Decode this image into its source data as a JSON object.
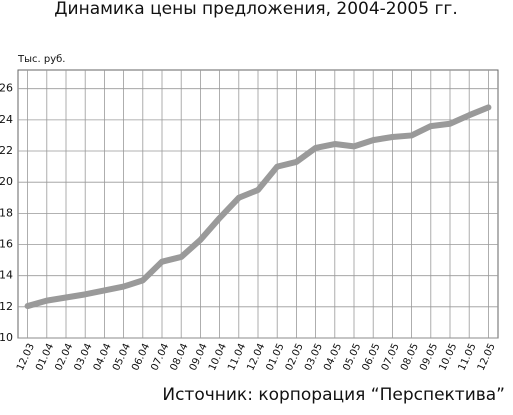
{
  "chart_data": {
    "type": "line",
    "title": "Динамика цены предложения, 2004-2005 гг.",
    "y_label": "Тыс. руб.",
    "source": "Источник: корпорация “Перспектива”",
    "categories": [
      "12.03",
      "01.04",
      "02.04",
      "03.04",
      "04.04",
      "05.04",
      "06.04",
      "07.04",
      "08.04",
      "09.04",
      "10.04",
      "11.04",
      "12.04",
      "01.05",
      "02.05",
      "03.05",
      "04.05",
      "05.05",
      "06.05",
      "07.05",
      "08.05",
      "09.05",
      "10.05",
      "11.05",
      "12.05"
    ],
    "series": [
      {
        "color": "#9a9a9a",
        "values": [
          12.05,
          12.4,
          12.6,
          12.8,
          13.05,
          13.3,
          13.7,
          14.9,
          15.2,
          16.3,
          17.7,
          19.0,
          19.5,
          21.0,
          21.3,
          22.2,
          22.45,
          22.3,
          22.7,
          22.9,
          23.0,
          23.6,
          23.75,
          24.3,
          24.8
        ]
      }
    ],
    "ylim": [
      10,
      27.2
    ],
    "yticks": [
      10,
      12,
      14,
      16,
      18,
      20,
      22,
      24,
      26
    ],
    "grid": true
  }
}
